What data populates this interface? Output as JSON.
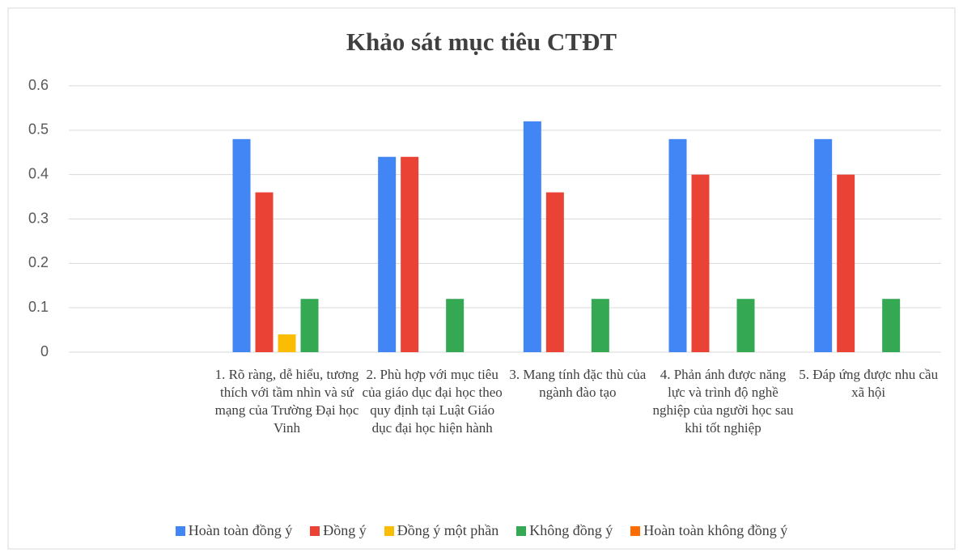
{
  "chart_data": {
    "type": "bar",
    "title": "Khảo sát mục tiêu CTĐT",
    "categories": [
      null,
      "1. Rõ ràng, dễ hiểu, tương thích với tầm nhìn và sứ mạng của Trường Đại học Vinh",
      "2. Phù hợp với mục tiêu của giáo dục đại học theo quy định tại Luật Giáo dục đại học hiện hành",
      "3. Mang tính đặc thù của ngành đào tạo",
      "4. Phản ánh được năng lực và trình độ nghề nghiệp của người học sau khi tốt nghiệp",
      "5. Đáp ứng được nhu cầu xã hội"
    ],
    "series": [
      {
        "name": "Hoàn toàn đồng ý",
        "color": "#4285f4",
        "values": [
          null,
          0.48,
          0.44,
          0.52,
          0.48,
          0.48
        ]
      },
      {
        "name": "Đồng ý",
        "color": "#ea4335",
        "values": [
          null,
          0.36,
          0.44,
          0.36,
          0.4,
          0.4
        ]
      },
      {
        "name": "Đồng ý một phần",
        "color": "#fbbc04",
        "values": [
          null,
          0.04,
          0,
          0,
          0,
          0
        ]
      },
      {
        "name": "Không đồng ý",
        "color": "#34a853",
        "values": [
          null,
          0.12,
          0.12,
          0.12,
          0.12,
          0.12
        ]
      },
      {
        "name": "Hoàn toàn không đồng ý",
        "color": "#ff6d01",
        "values": [
          null,
          0,
          0,
          0,
          0,
          0
        ]
      }
    ],
    "ylim": [
      0,
      0.6
    ],
    "yticks": [
      0,
      0.1,
      0.2,
      0.3,
      0.4,
      0.5,
      0.6
    ],
    "grid": true,
    "legend": "bottom"
  }
}
